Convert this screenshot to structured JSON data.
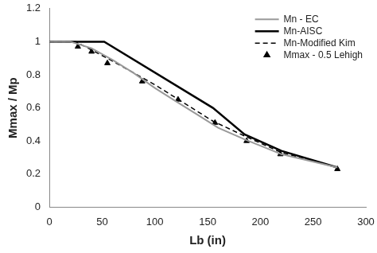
{
  "chart_data": {
    "type": "line",
    "x_label": "Lb (in)",
    "y_label": "Mmax / Mp",
    "xlim": [
      0,
      300
    ],
    "xticks": [
      0,
      50,
      100,
      150,
      200,
      250,
      300
    ],
    "ylim": [
      0,
      1.2
    ],
    "yticks": [
      0,
      0.2,
      0.4,
      0.6,
      0.8,
      1,
      1.2
    ],
    "grid": false,
    "legend": "upper right",
    "series": [
      {
        "name": "Mn - EC",
        "color": "#999999",
        "marker": "none",
        "line_style": "solid",
        "x": [
          0,
          20,
          40,
          60,
          80,
          100,
          120,
          140,
          160,
          185,
          220,
          273
        ],
        "values": [
          1,
          1,
          0.96,
          0.89,
          0.81,
          0.72,
          0.64,
          0.56,
          0.48,
          0.41,
          0.32,
          0.24
        ]
      },
      {
        "name": "Mn-AISC",
        "color": "#000000",
        "marker": "none",
        "line_style": "solid",
        "x": [
          0,
          52,
          155,
          185,
          220,
          273
        ],
        "values": [
          1,
          1,
          0.6,
          0.44,
          0.34,
          0.24
        ]
      },
      {
        "name": "Mn-Modified Kim",
        "color": "#000000",
        "marker": "none",
        "line_style": "dashed",
        "x": [
          0,
          25,
          55,
          100,
          155,
          185,
          220,
          273
        ],
        "values": [
          1,
          1,
          0.9,
          0.74,
          0.52,
          0.43,
          0.33,
          0.24
        ]
      },
      {
        "name": "Mmax - 0.5 Lehigh",
        "color": "#000000",
        "marker": "triangle",
        "line_style": "none",
        "x": [
          27,
          40,
          55,
          88,
          122,
          157,
          187,
          219,
          273
        ],
        "values": [
          0.97,
          0.94,
          0.87,
          0.76,
          0.65,
          0.51,
          0.4,
          0.32,
          0.23
        ]
      }
    ]
  }
}
